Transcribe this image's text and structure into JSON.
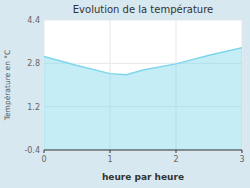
{
  "chart_data": {
    "type": "area",
    "title": "Evolution de la température",
    "x_label": "heure par heure",
    "y_label": "Température en °C",
    "x": [
      0,
      0.5,
      1.0,
      1.25,
      1.5,
      2.0,
      2.5,
      3.0
    ],
    "values": [
      3.05,
      2.72,
      2.42,
      2.38,
      2.55,
      2.78,
      3.1,
      3.38
    ],
    "xlim": [
      0,
      3
    ],
    "ylim": [
      -0.4,
      4.4
    ],
    "xticks": [
      0,
      1,
      2,
      3
    ],
    "yticks": [
      -0.4,
      1.2,
      2.8,
      4.4
    ],
    "color": "#7dd6ea",
    "grid": true
  }
}
